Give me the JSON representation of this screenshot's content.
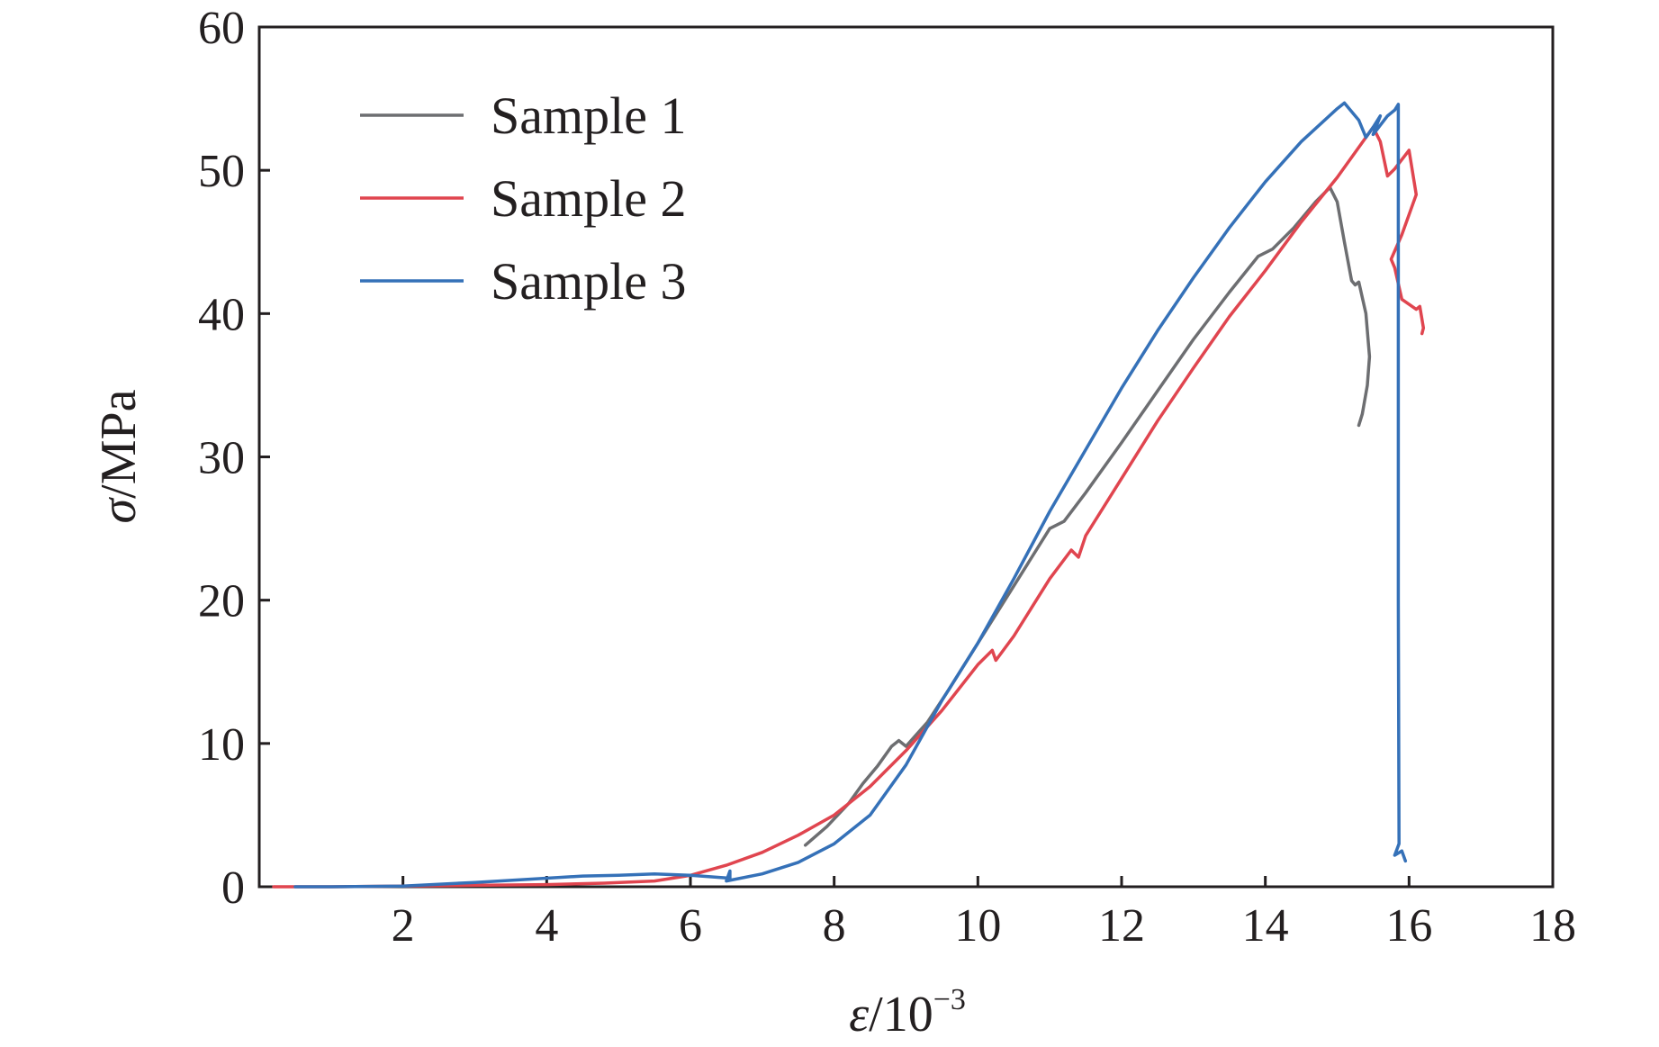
{
  "chart_data": {
    "type": "line",
    "x_axis": {
      "symbol": "ε",
      "unit_base": "/10",
      "unit_exponent": "−3",
      "range": [
        0,
        18
      ],
      "ticks": [
        2,
        4,
        6,
        8,
        10,
        12,
        14,
        16,
        18
      ],
      "tick_labels": [
        "2",
        "4",
        "6",
        "8",
        "10",
        "12",
        "14",
        "16",
        "18"
      ]
    },
    "y_axis": {
      "symbol": "σ",
      "unit": "/MPa",
      "range": [
        0,
        60
      ],
      "ticks": [
        0,
        10,
        20,
        30,
        40,
        50,
        60
      ],
      "tick_labels": [
        "0",
        "10",
        "20",
        "30",
        "40",
        "50",
        "60"
      ]
    },
    "legend": {
      "position": "top-left"
    },
    "series": [
      {
        "name": "Sample 1",
        "color": "#6d6e71",
        "points": [
          [
            7.6,
            2.9
          ],
          [
            7.9,
            4.2
          ],
          [
            8.2,
            5.8
          ],
          [
            8.4,
            7.2
          ],
          [
            8.6,
            8.4
          ],
          [
            8.8,
            9.8
          ],
          [
            8.9,
            10.2
          ],
          [
            9.0,
            9.8
          ],
          [
            9.3,
            11.5
          ],
          [
            9.6,
            13.8
          ],
          [
            10.0,
            17.0
          ],
          [
            10.5,
            21.0
          ],
          [
            11.0,
            25.0
          ],
          [
            11.2,
            25.5
          ],
          [
            11.5,
            27.5
          ],
          [
            12.0,
            31.0
          ],
          [
            12.5,
            34.6
          ],
          [
            13.0,
            38.2
          ],
          [
            13.5,
            41.5
          ],
          [
            13.9,
            44.0
          ],
          [
            14.1,
            44.5
          ],
          [
            14.4,
            46.0
          ],
          [
            14.7,
            47.8
          ],
          [
            14.9,
            48.8
          ],
          [
            15.0,
            47.8
          ],
          [
            15.1,
            45.0
          ],
          [
            15.2,
            42.3
          ],
          [
            15.25,
            42.0
          ],
          [
            15.3,
            42.2
          ],
          [
            15.4,
            40.0
          ],
          [
            15.45,
            37.0
          ],
          [
            15.42,
            35.0
          ],
          [
            15.35,
            33.0
          ],
          [
            15.3,
            32.2
          ]
        ]
      },
      {
        "name": "Sample 2",
        "color": "#e0454f",
        "points": [
          [
            0.2,
            0.0
          ],
          [
            1.0,
            0.0
          ],
          [
            2.0,
            0.05
          ],
          [
            3.0,
            0.1
          ],
          [
            4.0,
            0.15
          ],
          [
            4.8,
            0.25
          ],
          [
            5.5,
            0.4
          ],
          [
            6.0,
            0.8
          ],
          [
            6.5,
            1.5
          ],
          [
            7.0,
            2.4
          ],
          [
            7.5,
            3.6
          ],
          [
            8.0,
            5.0
          ],
          [
            8.5,
            7.0
          ],
          [
            9.0,
            9.5
          ],
          [
            9.5,
            12.3
          ],
          [
            10.0,
            15.5
          ],
          [
            10.2,
            16.5
          ],
          [
            10.25,
            15.8
          ],
          [
            10.5,
            17.5
          ],
          [
            11.0,
            21.5
          ],
          [
            11.3,
            23.5
          ],
          [
            11.4,
            23.0
          ],
          [
            11.5,
            24.5
          ],
          [
            12.0,
            28.5
          ],
          [
            12.5,
            32.5
          ],
          [
            13.0,
            36.2
          ],
          [
            13.5,
            39.8
          ],
          [
            14.0,
            43.0
          ],
          [
            14.5,
            46.4
          ],
          [
            15.0,
            49.5
          ],
          [
            15.4,
            52.3
          ],
          [
            15.5,
            53.0
          ],
          [
            15.6,
            52.0
          ],
          [
            15.7,
            49.6
          ],
          [
            15.8,
            50.1
          ],
          [
            16.0,
            51.4
          ],
          [
            16.1,
            48.3
          ],
          [
            15.9,
            45.5
          ],
          [
            15.75,
            43.8
          ],
          [
            15.8,
            43.2
          ],
          [
            15.9,
            41.0
          ],
          [
            16.1,
            40.3
          ],
          [
            16.15,
            40.5
          ],
          [
            16.2,
            39.0
          ],
          [
            16.18,
            38.6
          ]
        ]
      },
      {
        "name": "Sample 3",
        "color": "#3571b8",
        "points": [
          [
            0.5,
            0.0
          ],
          [
            1.0,
            0.0
          ],
          [
            2.0,
            0.05
          ],
          [
            3.0,
            0.3
          ],
          [
            4.0,
            0.6
          ],
          [
            4.5,
            0.75
          ],
          [
            5.0,
            0.8
          ],
          [
            5.5,
            0.9
          ],
          [
            6.0,
            0.8
          ],
          [
            6.55,
            0.6
          ],
          [
            6.55,
            1.1
          ],
          [
            6.5,
            0.4
          ],
          [
            7.0,
            0.9
          ],
          [
            7.5,
            1.7
          ],
          [
            8.0,
            3.0
          ],
          [
            8.5,
            5.0
          ],
          [
            9.0,
            8.5
          ],
          [
            9.5,
            13.0
          ],
          [
            10.0,
            17.0
          ],
          [
            10.5,
            21.5
          ],
          [
            11.0,
            26.2
          ],
          [
            11.5,
            30.5
          ],
          [
            12.0,
            34.8
          ],
          [
            12.5,
            38.8
          ],
          [
            13.0,
            42.5
          ],
          [
            13.5,
            46.0
          ],
          [
            14.0,
            49.2
          ],
          [
            14.5,
            52.0
          ],
          [
            15.0,
            54.3
          ],
          [
            15.1,
            54.7
          ],
          [
            15.3,
            53.5
          ],
          [
            15.4,
            52.3
          ],
          [
            15.5,
            53.0
          ],
          [
            15.6,
            53.8
          ],
          [
            15.5,
            52.5
          ],
          [
            15.7,
            53.8
          ],
          [
            15.8,
            54.2
          ],
          [
            15.85,
            54.6
          ],
          [
            15.85,
            20.0
          ],
          [
            15.86,
            3.0
          ],
          [
            15.8,
            2.2
          ],
          [
            15.9,
            2.5
          ],
          [
            15.95,
            1.8
          ]
        ]
      }
    ]
  }
}
